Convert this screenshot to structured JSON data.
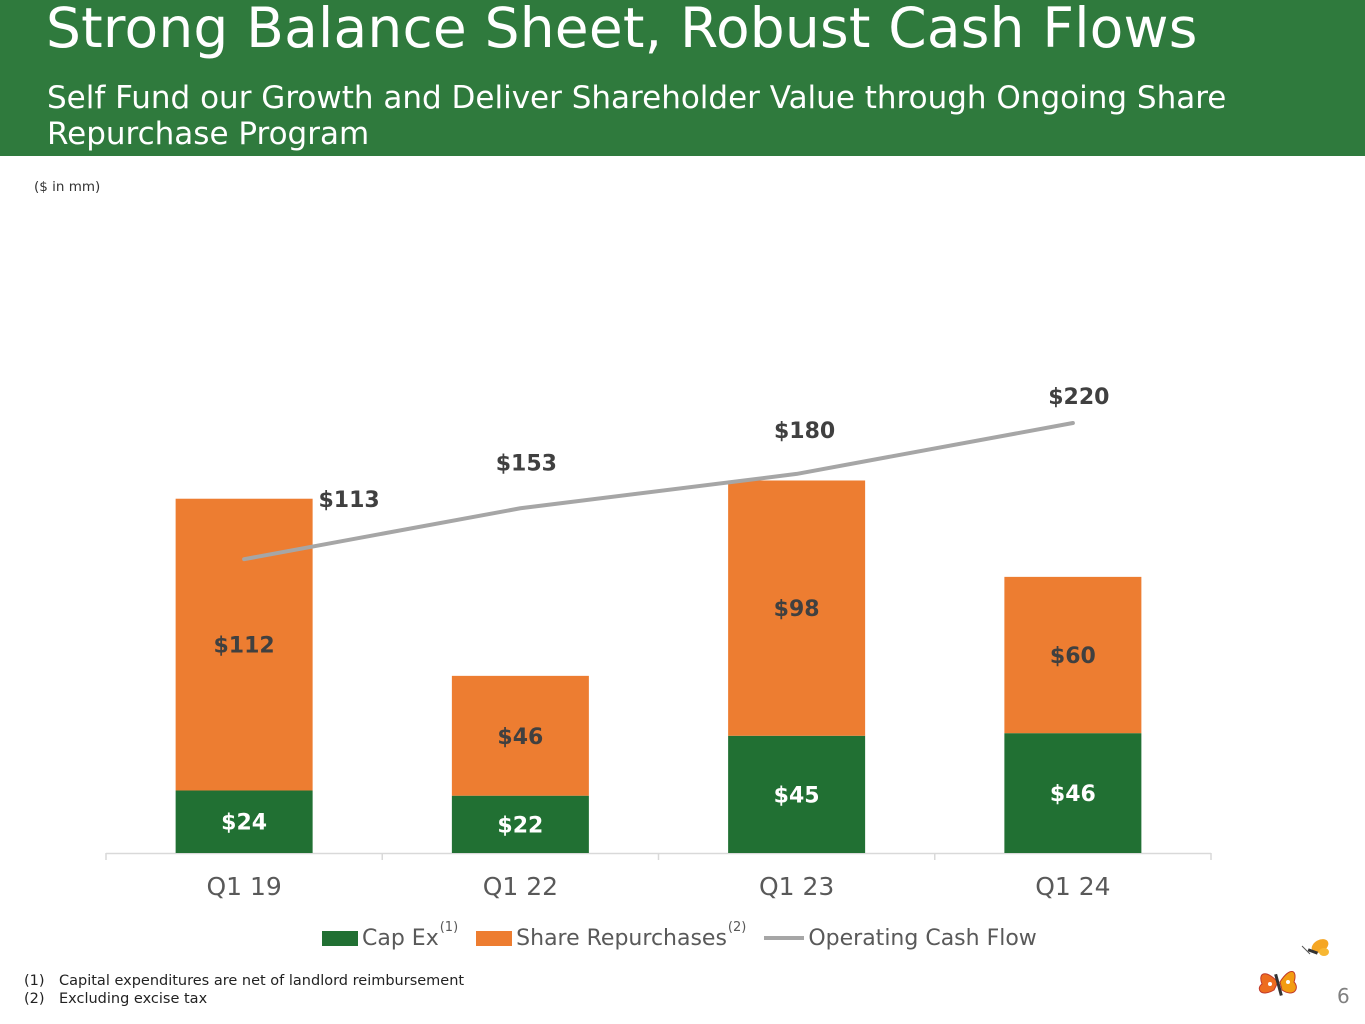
{
  "header": {
    "title": "Strong Balance Sheet, Robust Cash Flows",
    "subtitle": "Self Fund our Growth and Deliver Shareholder Value through Ongoing Share Repurchase Program"
  },
  "units_note": "($ in mm)",
  "chart_data": {
    "type": "bar",
    "stacked": true,
    "categories": [
      "Q1 19",
      "Q1 22",
      "Q1 23",
      "Q1 24"
    ],
    "series": [
      {
        "name": "Cap Ex",
        "footnote": "(1)",
        "kind": "bar",
        "color": "#217033",
        "values": [
          24,
          22,
          45,
          46
        ],
        "labels": [
          "$24",
          "$22",
          "$45",
          "$46"
        ]
      },
      {
        "name": "Share Repurchases",
        "footnote": "(2)",
        "kind": "bar",
        "color": "#ed7d31",
        "values": [
          112,
          46,
          98,
          60
        ],
        "labels": [
          "$112",
          "$46",
          "$98",
          "$60"
        ]
      },
      {
        "name": "Operating Cash Flow",
        "footnote": "",
        "kind": "line",
        "color": "#a6a6a6",
        "values": [
          113,
          153,
          180,
          220
        ],
        "labels": [
          "$113",
          "$153",
          "$180",
          "$220"
        ]
      }
    ],
    "bar_ylim": [
      0,
      160
    ],
    "line_ylim": [
      0,
      260
    ],
    "grid": false,
    "legend_position": "bottom",
    "xlabel": "",
    "ylabel": ""
  },
  "footnotes": [
    {
      "num": "(1)",
      "text": "Capital expenditures are net of landlord reimbursement"
    },
    {
      "num": "(2)",
      "text": "Excluding excise tax"
    }
  ],
  "page_number": "6"
}
